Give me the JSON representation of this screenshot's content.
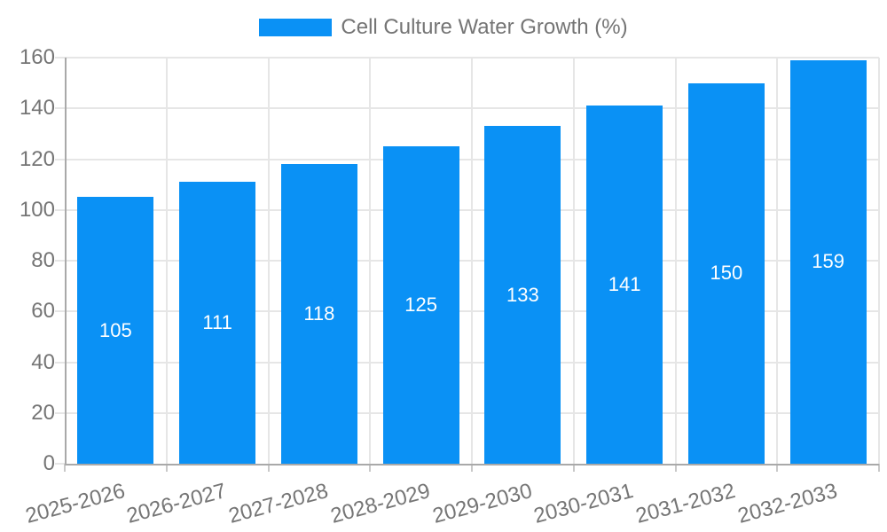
{
  "chart_data": {
    "type": "bar",
    "title": "",
    "legend_label": "Cell Culture Water Growth (%)",
    "legend_position": "top-center",
    "categories": [
      "2025-2026",
      "2026-2027",
      "2027-2028",
      "2028-2029",
      "2029-2030",
      "2030-2031",
      "2031-2032",
      "2032-2033"
    ],
    "values": [
      105,
      111,
      118,
      125,
      133,
      141,
      150,
      159
    ],
    "yticks": [
      0,
      20,
      40,
      60,
      80,
      100,
      120,
      140,
      160
    ],
    "ylim": [
      0,
      160
    ],
    "xlabel": "",
    "ylabel": "",
    "grid": "on",
    "bar_label_position": "inside-center",
    "x_label_rotation_deg": -15
  },
  "colors": {
    "bar": "#0A91F5",
    "bar_label_text": "#FFFFFF",
    "axis_line": "#A9A9A9",
    "gridline": "#E6E6E6",
    "tick_mark": "#C9C9C9",
    "tick_text": "#757575",
    "background": "#FFFFFF"
  }
}
